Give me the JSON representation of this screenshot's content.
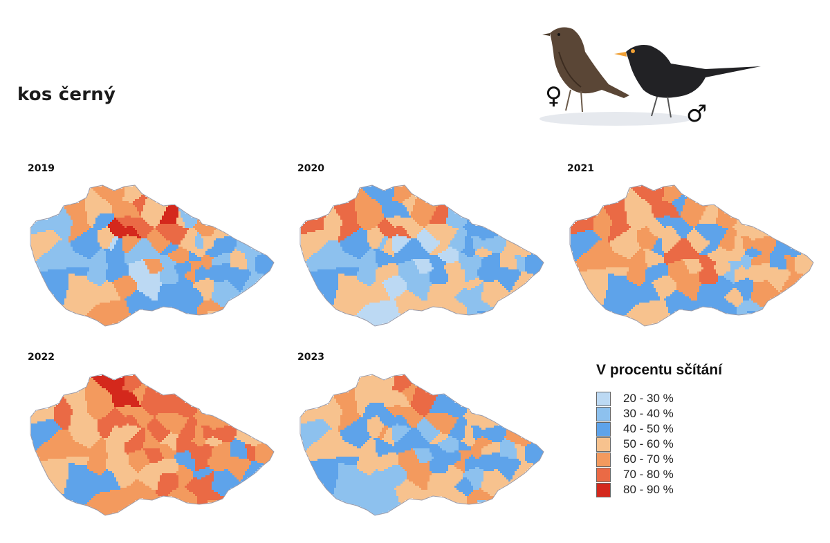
{
  "title": "kos černý",
  "symbols": {
    "female": "♀",
    "male": "♂"
  },
  "legend": {
    "title": "V procentu sčítání",
    "items": [
      {
        "label": "20 - 30 %",
        "color": "#bcd9f3"
      },
      {
        "label": "30 - 40 %",
        "color": "#8dc1ee"
      },
      {
        "label": "40 - 50 %",
        "color": "#5ea3ea"
      },
      {
        "label": "50 - 60 %",
        "color": "#f7c28e"
      },
      {
        "label": "60 - 70 %",
        "color": "#f39a5e"
      },
      {
        "label": "70 - 80 %",
        "color": "#ea6a45"
      },
      {
        "label": "80 - 90 %",
        "color": "#d4281c"
      }
    ]
  },
  "maps": [
    {
      "year": "2019"
    },
    {
      "year": "2020"
    },
    {
      "year": "2021"
    },
    {
      "year": "2022"
    },
    {
      "year": "2023"
    }
  ]
}
